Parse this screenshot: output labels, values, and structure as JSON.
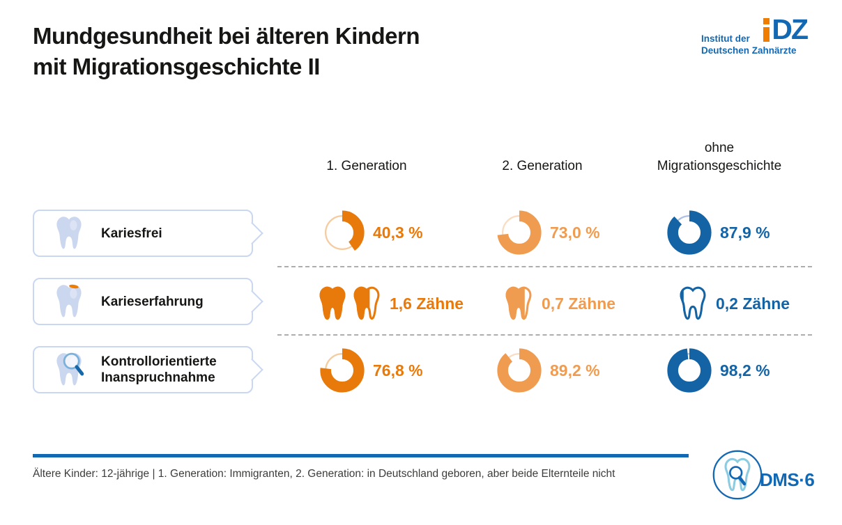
{
  "header": {
    "title_line1": "Mundgesundheit bei älteren Kindern",
    "title_line2": "mit Migrationsgeschichte II"
  },
  "idz_logo": {
    "mark_dz": "DZ",
    "text_line1": "Institut der",
    "text_line2": "Deutschen Zahnärzte",
    "orange": "#F07D00",
    "blue": "#1268B3"
  },
  "columns": [
    {
      "label": "1. Generation",
      "color": "#E8790B",
      "pale": "#F5CBA0"
    },
    {
      "label": "2. Generation",
      "color": "#F09C50",
      "pale": "#F9DDC2"
    },
    {
      "label": "ohne Migrationsgeschichte",
      "color": "#1464A5",
      "pale": "#AFC2E4"
    }
  ],
  "rows": [
    {
      "label": "Kariesfrei",
      "icon": "tooth-icon",
      "cells": [
        {
          "display": "40,3 %",
          "pct": 40.3
        },
        {
          "display": "73,0 %",
          "pct": 73.0
        },
        {
          "display": "87,9 %",
          "pct": 87.9
        }
      ]
    },
    {
      "label": "Karieserfahrung",
      "icon": "tooth-caries-icon",
      "cells": [
        {
          "display": "1,6 Zähne",
          "teeth": 1.6
        },
        {
          "display": "0,7 Zähne",
          "teeth": 0.7
        },
        {
          "display": "0,2 Zähne",
          "teeth": 0.2
        }
      ]
    },
    {
      "label": "Kontrollorientierte Inanspruchnahme",
      "icon": "tooth-magnifier-icon",
      "cells": [
        {
          "display": "76,8 %",
          "pct": 76.8
        },
        {
          "display": "89,2 %",
          "pct": 89.2
        },
        {
          "display": "98,2 %",
          "pct": 98.2
        }
      ]
    }
  ],
  "footer": {
    "note": "Ältere Kinder: 12-jährige | 1. Generation: Immigranten, 2. Generation: in Deutschland geboren, aber beide Elternteile nicht",
    "dms_label": "DMS·6",
    "rule_color": "#1268B3"
  },
  "chart_data": [
    {
      "type": "pie",
      "title": "Kariesfrei",
      "unit": "%",
      "categories": [
        "1. Generation",
        "2. Generation",
        "ohne Migrationsgeschichte"
      ],
      "values": [
        40.3,
        73.0,
        87.9
      ],
      "colors": [
        "#E8790B",
        "#F09C50",
        "#1464A5"
      ],
      "note": "donut charts, filled clockwise from 12 o'clock"
    },
    {
      "type": "bar",
      "title": "Karieserfahrung",
      "unit": "Zähne",
      "categories": [
        "1. Generation",
        "2. Generation",
        "ohne Migrationsgeschichte"
      ],
      "values": [
        1.6,
        0.7,
        0.2
      ],
      "colors": [
        "#E8790B",
        "#F09C50",
        "#1464A5"
      ],
      "note": "tooth pictograms, partially filled"
    },
    {
      "type": "pie",
      "title": "Kontrollorientierte Inanspruchnahme",
      "unit": "%",
      "categories": [
        "1. Generation",
        "2. Generation",
        "ohne Migrationsgeschichte"
      ],
      "values": [
        76.8,
        89.2,
        98.2
      ],
      "colors": [
        "#E8790B",
        "#F09C50",
        "#1464A5"
      ],
      "note": "donut charts, filled clockwise from 12 o'clock"
    }
  ]
}
